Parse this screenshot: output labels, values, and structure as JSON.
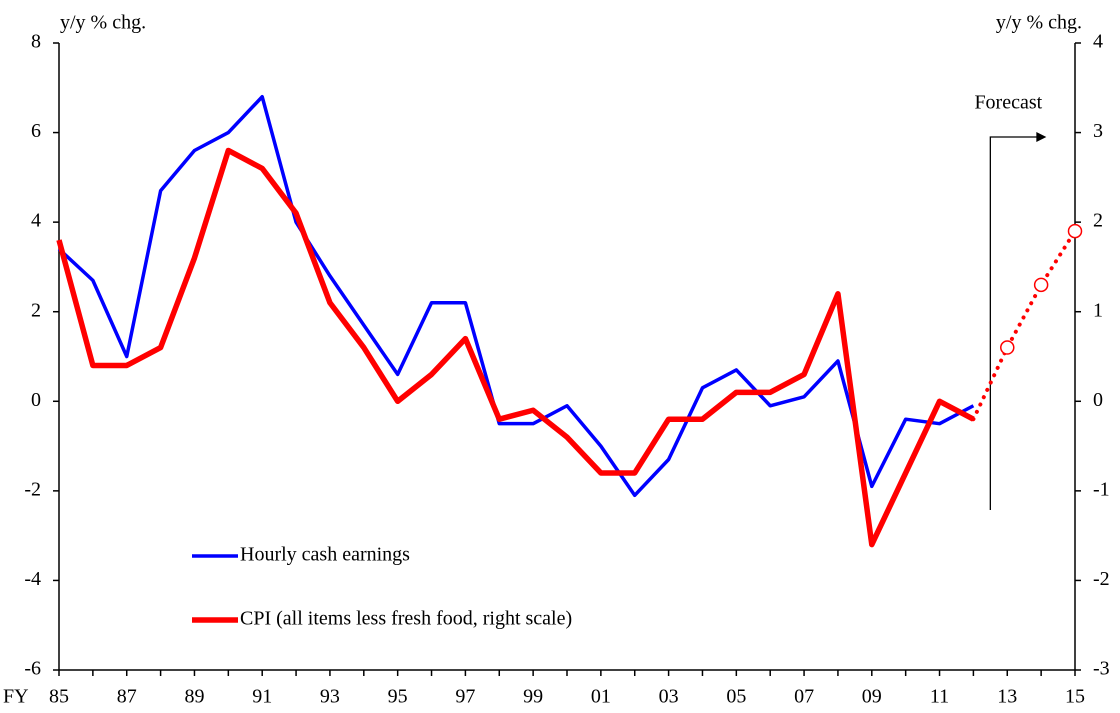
{
  "chart_data": {
    "type": "line",
    "x_label": "FY",
    "y_label": "y/y % chg.",
    "y2_label": "y/y % chg.",
    "annotation": "Forecast",
    "categories": [
      "85",
      null,
      "87",
      null,
      "89",
      null,
      "91",
      null,
      "93",
      null,
      "95",
      null,
      "97",
      null,
      "99",
      null,
      "01",
      null,
      "03",
      null,
      "05",
      null,
      "07",
      null,
      "09",
      null,
      "11",
      null,
      "13",
      null,
      "15"
    ],
    "ylim": [
      -6,
      8
    ],
    "yticks": [
      -6,
      -4,
      -2,
      0,
      2,
      4,
      6,
      8
    ],
    "y2lim": [
      -3,
      4
    ],
    "y2ticks": [
      -3,
      -2,
      -1,
      0,
      1,
      2,
      3,
      4
    ],
    "grid": false,
    "legend": "lower left",
    "series": [
      {
        "name": "Hourly cash earnings",
        "color": "#0000ff",
        "axis": "y",
        "values": [
          3.4,
          2.7,
          1.0,
          4.7,
          5.6,
          6.0,
          6.8,
          4.0,
          2.8,
          1.7,
          0.6,
          2.2,
          2.2,
          -0.5,
          -0.5,
          -0.1,
          -1.0,
          -2.1,
          -1.3,
          0.3,
          0.7,
          -0.1,
          0.1,
          0.9,
          -1.9,
          -0.4,
          -0.5,
          -0.1,
          null,
          null,
          null
        ]
      },
      {
        "name": "CPI (all items less fresh food, right scale)",
        "color": "#ff0000",
        "axis": "y2",
        "values": [
          1.8,
          0.4,
          0.4,
          0.6,
          1.6,
          2.8,
          2.6,
          2.1,
          1.1,
          0.6,
          0.0,
          0.3,
          0.7,
          -0.2,
          -0.1,
          -0.4,
          -0.8,
          -0.8,
          -0.2,
          -0.2,
          0.1,
          0.1,
          0.3,
          1.2,
          -1.6,
          -0.8,
          0.0,
          -0.2,
          null,
          null,
          null
        ]
      },
      {
        "color": "#ff0000",
        "axis": "y2",
        "style": "dotted",
        "values": [
          null,
          null,
          null,
          null,
          null,
          null,
          null,
          null,
          null,
          null,
          null,
          null,
          null,
          null,
          null,
          null,
          null,
          null,
          null,
          null,
          null,
          null,
          null,
          null,
          null,
          null,
          null,
          -0.2,
          0.6,
          1.3,
          1.9
        ]
      }
    ]
  }
}
